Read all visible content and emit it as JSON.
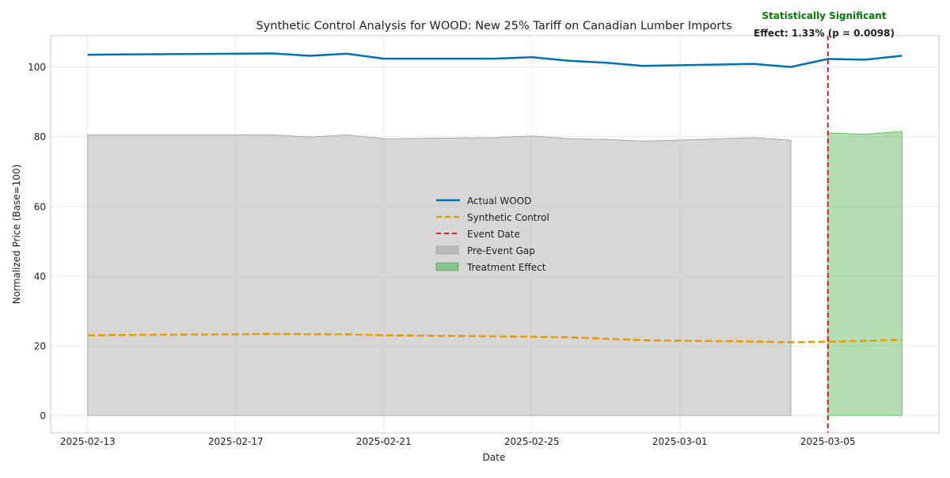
{
  "chart_data": {
    "type": "line",
    "title": "Synthetic Control Analysis for WOOD: New 25% Tariff on Canadian Lumber Imports",
    "xlabel": "Date",
    "ylabel": "Normalized Price (Base=100)",
    "xlim": [
      "2025-02-12",
      "2025-03-08"
    ],
    "ylim": [
      -5,
      109
    ],
    "grid": true,
    "legend_position": "center",
    "x_ticks": [
      "2025-02-13",
      "2025-02-17",
      "2025-02-21",
      "2025-02-25",
      "2025-03-01",
      "2025-03-05"
    ],
    "y_ticks": [
      0,
      20,
      40,
      60,
      80,
      100
    ],
    "series": [
      {
        "name": "Actual WOOD",
        "color": "#0072b2",
        "style": "solid",
        "points": [
          [
            "2025-02-13",
            103.5
          ],
          [
            "2025-02-14",
            103.6
          ],
          [
            "2025-02-17",
            103.8
          ],
          [
            "2025-02-18",
            103.9
          ],
          [
            "2025-02-19",
            103.2
          ],
          [
            "2025-02-20",
            103.8
          ],
          [
            "2025-02-21",
            102.4
          ],
          [
            "2025-02-24",
            102.4
          ],
          [
            "2025-02-25",
            102.8
          ],
          [
            "2025-02-26",
            101.8
          ],
          [
            "2025-02-27",
            101.2
          ],
          [
            "2025-02-28",
            100.3
          ],
          [
            "2025-03-03",
            100.9
          ],
          [
            "2025-03-04",
            100.0
          ],
          [
            "2025-03-05",
            102.3
          ],
          [
            "2025-03-06",
            102.1
          ],
          [
            "2025-03-07",
            103.2
          ]
        ]
      },
      {
        "name": "Synthetic Control",
        "color": "#e69f00",
        "style": "dashed",
        "points": [
          [
            "2025-02-13",
            23.0
          ],
          [
            "2025-02-14",
            23.1
          ],
          [
            "2025-02-17",
            23.3
          ],
          [
            "2025-02-18",
            23.4
          ],
          [
            "2025-02-19",
            23.3
          ],
          [
            "2025-02-20",
            23.3
          ],
          [
            "2025-02-21",
            23.0
          ],
          [
            "2025-02-24",
            22.7
          ],
          [
            "2025-02-25",
            22.6
          ],
          [
            "2025-02-26",
            22.4
          ],
          [
            "2025-02-27",
            22.0
          ],
          [
            "2025-02-28",
            21.6
          ],
          [
            "2025-03-03",
            21.2
          ],
          [
            "2025-03-04",
            21.0
          ],
          [
            "2025-03-05",
            21.2
          ],
          [
            "2025-03-06",
            21.4
          ],
          [
            "2025-03-07",
            21.7
          ]
        ]
      }
    ],
    "event": {
      "name": "Event Date",
      "date": "2025-03-05",
      "color": "#e00000"
    },
    "areas": [
      {
        "name": "Pre-Event Gap",
        "color": "#b0b0b0",
        "points": [
          [
            "2025-02-13",
            80.5
          ],
          [
            "2025-02-14",
            80.5
          ],
          [
            "2025-02-17",
            80.5
          ],
          [
            "2025-02-18",
            80.5
          ],
          [
            "2025-02-19",
            79.9
          ],
          [
            "2025-02-20",
            80.5
          ],
          [
            "2025-02-21",
            79.4
          ],
          [
            "2025-02-24",
            79.7
          ],
          [
            "2025-02-25",
            80.2
          ],
          [
            "2025-02-26",
            79.4
          ],
          [
            "2025-02-27",
            79.2
          ],
          [
            "2025-02-28",
            78.7
          ],
          [
            "2025-03-03",
            79.7
          ],
          [
            "2025-03-04",
            79.0
          ]
        ]
      },
      {
        "name": "Treatment Effect",
        "color": "#4daf4a",
        "points": [
          [
            "2025-03-05",
            81.1
          ],
          [
            "2025-03-06",
            80.7
          ],
          [
            "2025-03-07",
            81.5
          ]
        ]
      }
    ],
    "annotation": {
      "headline": "Statistically Significant",
      "headline_color": "#008000",
      "detail": "Effect: 1.33% (p = 0.0098)"
    }
  }
}
